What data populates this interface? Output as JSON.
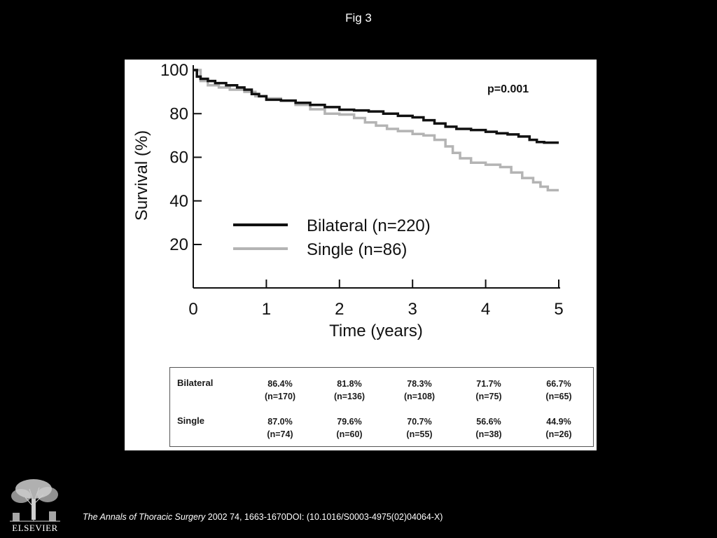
{
  "page": {
    "title": "Fig 3",
    "citation": {
      "journal": "The Annals of Thoracic Surgery",
      "details": " 2002 74, 1663-1670DOI: (10.1016/S0003-4975(02)04064-X)"
    },
    "logo": {
      "wordmark": "ELSEVIER"
    }
  },
  "chart_data": {
    "type": "line",
    "title": "",
    "xlabel": "Time (years)",
    "ylabel": "Survival (%)",
    "xlim": [
      0,
      5
    ],
    "ylim": [
      0,
      100
    ],
    "x_ticks": [
      "0",
      "1",
      "2",
      "3",
      "4",
      "5"
    ],
    "y_ticks": [
      "100",
      "80",
      "60",
      "40",
      "20"
    ],
    "annotation": "p=0.001",
    "legend_placement": "center",
    "series": [
      {
        "name": "Bilateral (n=220)",
        "color": "#111111",
        "step": true,
        "x": [
          0,
          0.05,
          0.1,
          0.2,
          0.3,
          0.45,
          0.6,
          0.7,
          0.8,
          0.9,
          1.0,
          1.2,
          1.4,
          1.6,
          1.8,
          2.0,
          2.2,
          2.4,
          2.6,
          2.8,
          3.0,
          3.15,
          3.3,
          3.45,
          3.6,
          3.8,
          4.0,
          4.15,
          4.3,
          4.45,
          4.6,
          4.7,
          4.8,
          5.0
        ],
        "y": [
          100,
          97,
          96,
          95,
          94,
          93,
          92,
          91,
          89,
          88,
          86.4,
          86,
          85,
          84,
          83,
          81.8,
          81.5,
          81,
          80,
          79,
          78.3,
          77,
          75.5,
          74,
          73,
          72.5,
          71.7,
          71,
          70.5,
          69.5,
          68,
          67,
          66.7,
          66.7
        ]
      },
      {
        "name": "Single (n=86)",
        "color": "#b4b4b4",
        "step": true,
        "x": [
          0,
          0.1,
          0.2,
          0.35,
          0.5,
          0.7,
          0.85,
          1.0,
          1.2,
          1.4,
          1.6,
          1.8,
          2.0,
          2.2,
          2.35,
          2.5,
          2.65,
          2.8,
          3.0,
          3.15,
          3.3,
          3.45,
          3.55,
          3.65,
          3.8,
          4.0,
          4.2,
          4.35,
          4.5,
          4.65,
          4.75,
          4.85,
          5.0
        ],
        "y": [
          100,
          95,
          93,
          92,
          91,
          90,
          88,
          87,
          86,
          84,
          82,
          80,
          79.6,
          78,
          76,
          74.5,
          73,
          72,
          70.7,
          70,
          68,
          65,
          62,
          59.5,
          57.5,
          56.6,
          55.5,
          53,
          50.5,
          48.5,
          46.5,
          44.9,
          44.9
        ]
      }
    ],
    "table": {
      "rows": [
        {
          "label": "Bilateral",
          "cells": [
            {
              "pct": "86.4%",
              "n": "(n=170)"
            },
            {
              "pct": "81.8%",
              "n": "(n=136)"
            },
            {
              "pct": "78.3%",
              "n": "(n=108)"
            },
            {
              "pct": "71.7%",
              "n": "(n=75)"
            },
            {
              "pct": "66.7%",
              "n": "(n=65)"
            }
          ]
        },
        {
          "label": "Single",
          "cells": [
            {
              "pct": "87.0%",
              "n": "(n=74)"
            },
            {
              "pct": "79.6%",
              "n": "(n=60)"
            },
            {
              "pct": "70.7%",
              "n": "(n=55)"
            },
            {
              "pct": "56.6%",
              "n": "(n=38)"
            },
            {
              "pct": "44.9%",
              "n": "(n=26)"
            }
          ]
        }
      ]
    }
  }
}
